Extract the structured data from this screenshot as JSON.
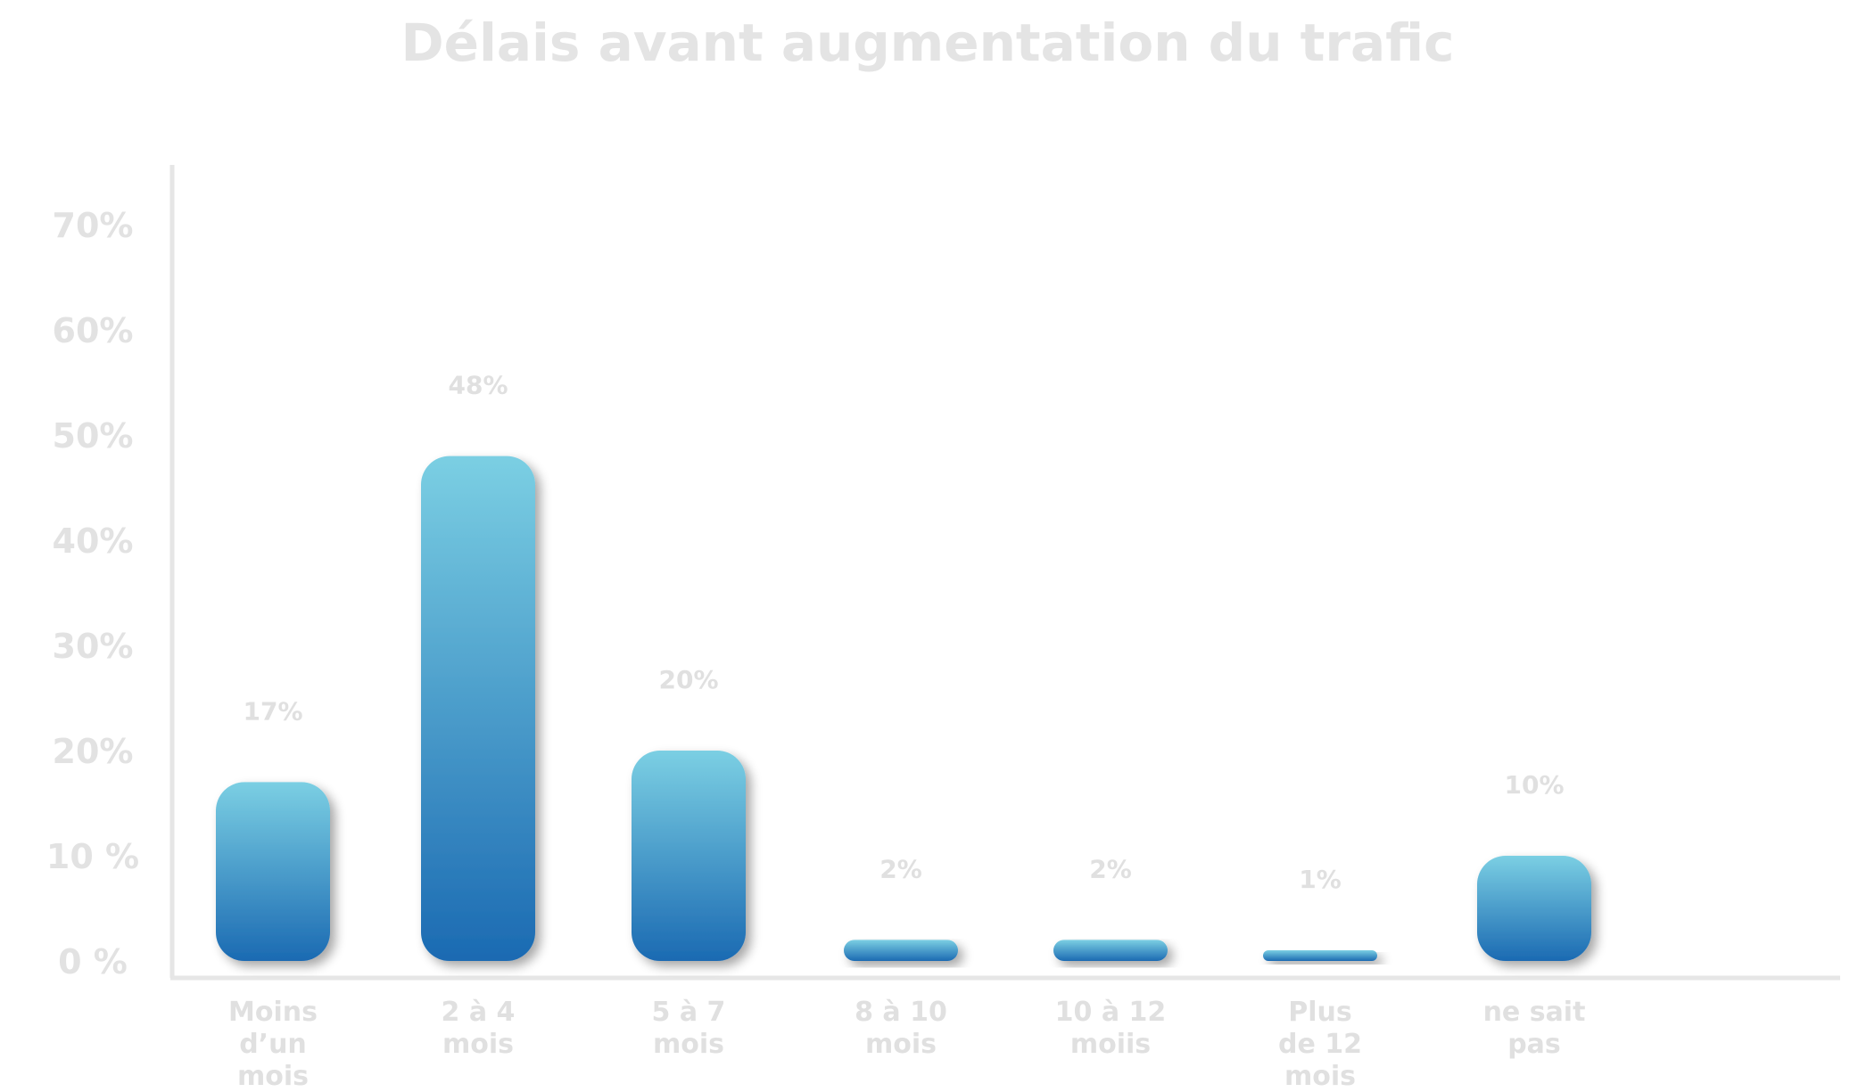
{
  "chart_data": {
    "type": "bar",
    "title": "Délais avant augmentation du trafic",
    "xlabel": "",
    "ylabel": "",
    "ylim": [
      0,
      70
    ],
    "grid": false,
    "y_ticks": [
      {
        "value": 0,
        "label": "0 %"
      },
      {
        "value": 10,
        "label": "10 %"
      },
      {
        "value": 20,
        "label": "20%"
      },
      {
        "value": 30,
        "label": "30%"
      },
      {
        "value": 40,
        "label": "40%"
      },
      {
        "value": 50,
        "label": "50%"
      },
      {
        "value": 60,
        "label": "60%"
      },
      {
        "value": 70,
        "label": "70%"
      }
    ],
    "categories": [
      [
        "Moins",
        "d’un",
        "mois"
      ],
      [
        "2 à 4",
        "mois"
      ],
      [
        "5 à 7",
        "mois"
      ],
      [
        "8 à 10",
        "mois"
      ],
      [
        "10 à 12",
        "moiis"
      ],
      [
        "Plus",
        "de 12",
        "mois"
      ],
      [
        "ne sait",
        "pas"
      ]
    ],
    "values": [
      17,
      48,
      20,
      2,
      2,
      1,
      10
    ],
    "data_labels": [
      "17%",
      "48%",
      "20%",
      "2%",
      "2%",
      "1%",
      "10%"
    ],
    "colors": {
      "bar_top": "#7bcfe3",
      "bar_bottom": "#1b6ab2",
      "axis": "#e6e6e6",
      "text": "#e2e2e2"
    }
  }
}
